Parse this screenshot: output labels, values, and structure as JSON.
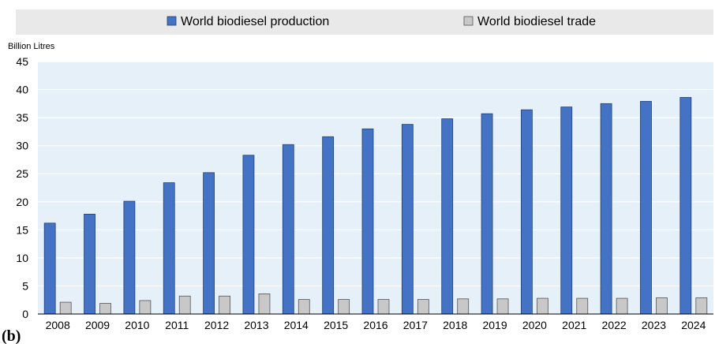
{
  "figure_label": "(b)",
  "colors": {
    "production": "#4472c4",
    "production_stroke": "#1f3f7a",
    "trade": "#c8c8c8",
    "trade_stroke": "#555555",
    "plot_bg": "#e6f0f9",
    "legend_bg": "#e9e9e9",
    "grid": "#ffffff",
    "axis": "#000000"
  },
  "chart_data": {
    "type": "bar",
    "ylabel": "Billion Litres",
    "ylim": [
      0,
      45
    ],
    "yticks": [
      0,
      5,
      10,
      15,
      20,
      25,
      30,
      35,
      40,
      45
    ],
    "grid": true,
    "legend_position": "top",
    "categories": [
      "2008",
      "2009",
      "2010",
      "2011",
      "2012",
      "2013",
      "2014",
      "2015",
      "2016",
      "2017",
      "2018",
      "2019",
      "2020",
      "2021",
      "2022",
      "2023",
      "2024"
    ],
    "series": [
      {
        "name": "World biodiesel production",
        "values": [
          16.2,
          17.8,
          20.1,
          23.4,
          25.2,
          28.3,
          30.2,
          31.6,
          33.0,
          33.8,
          34.8,
          35.7,
          36.4,
          36.9,
          37.5,
          37.9,
          38.6
        ]
      },
      {
        "name": "World biodiesel trade",
        "values": [
          2.1,
          1.9,
          2.4,
          3.2,
          3.2,
          3.6,
          2.6,
          2.6,
          2.6,
          2.6,
          2.7,
          2.7,
          2.8,
          2.8,
          2.8,
          2.9,
          2.9
        ]
      }
    ]
  }
}
